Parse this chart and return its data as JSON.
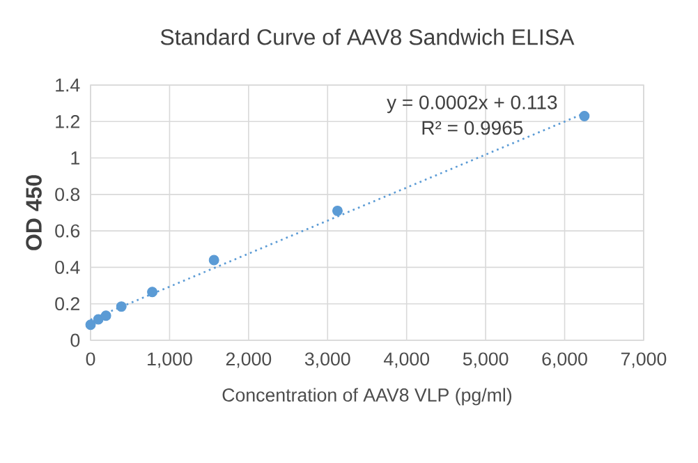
{
  "chart_data": {
    "type": "scatter",
    "title": "Standard Curve of AAV8 Sandwich ELISA",
    "xlabel": "Concentration of AAV8 VLP (pg/ml)",
    "ylabel": "OD 450",
    "series": [
      {
        "color": "#5b9bd5",
        "x": [
          0,
          98,
          195,
          390,
          781,
          1562,
          3125,
          6250
        ],
        "values": [
          0.085,
          0.115,
          0.135,
          0.185,
          0.265,
          0.44,
          0.71,
          1.23
        ],
        "marker": "circle"
      },
      {
        "type": "line",
        "color": "#5b9bd5",
        "x": [
          0,
          6250
        ],
        "values": [
          0.113,
          1.245
        ],
        "line_style": "dotted",
        "marker": "none"
      }
    ],
    "annotations": [
      "y = 0.0002x + 0.113",
      "R² = 0.9965"
    ],
    "xlim": [
      0,
      7000
    ],
    "xticks": [
      {
        "value": 0,
        "label": "0"
      },
      {
        "value": 1000,
        "label": "1,000"
      },
      {
        "value": 2000,
        "label": "2,000"
      },
      {
        "value": 3000,
        "label": "3,000"
      },
      {
        "value": 4000,
        "label": "4,000"
      },
      {
        "value": 5000,
        "label": "5,000"
      },
      {
        "value": 6000,
        "label": "6,000"
      },
      {
        "value": 7000,
        "label": "7,000"
      }
    ],
    "ylim": [
      0,
      1.4
    ],
    "yticks": [
      0,
      0.2,
      0.4,
      0.6,
      0.8,
      1,
      1.2,
      1.4
    ],
    "grid": true
  }
}
